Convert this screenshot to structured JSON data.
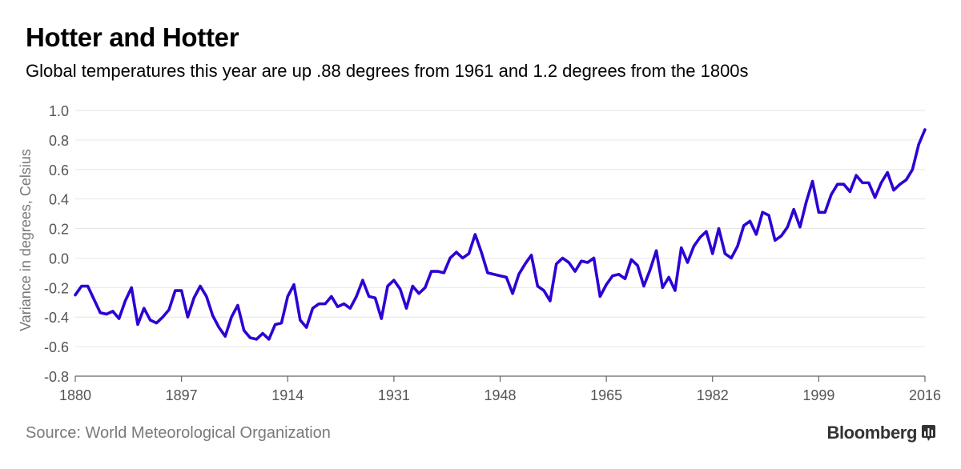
{
  "header": {
    "title": "Hotter and Hotter",
    "subtitle": "Global temperatures this year are up .88 degrees from 1961 and 1.2 degrees from the 1800s"
  },
  "footer": {
    "source": "Source: World Meteorological Organization",
    "brand": "Bloomberg"
  },
  "colors": {
    "line": "#2e00d4",
    "grid": "#e6e6e6",
    "axis": "#666666",
    "tick_text": "#555555"
  },
  "chart_data": {
    "type": "line",
    "title": "Hotter and Hotter",
    "ylabel": "Variance in degrees, Celsius",
    "xlabel": "",
    "xlim": [
      1880,
      2016
    ],
    "ylim": [
      -0.8,
      1.0
    ],
    "grid": true,
    "x_ticks": [
      "1880",
      "1897",
      "1914",
      "1931",
      "1948",
      "1965",
      "1982",
      "1999",
      "2016"
    ],
    "y_ticks": [
      "1.0",
      "0.8",
      "0.6",
      "0.4",
      "0.2",
      "0.0",
      "-0.2",
      "-0.4",
      "-0.6",
      "-0.8"
    ],
    "x": [
      1880,
      1881,
      1882,
      1883,
      1884,
      1885,
      1886,
      1887,
      1888,
      1889,
      1890,
      1891,
      1892,
      1893,
      1894,
      1895,
      1896,
      1897,
      1898,
      1899,
      1900,
      1901,
      1902,
      1903,
      1904,
      1905,
      1906,
      1907,
      1908,
      1909,
      1910,
      1911,
      1912,
      1913,
      1914,
      1915,
      1916,
      1917,
      1918,
      1919,
      1920,
      1921,
      1922,
      1923,
      1924,
      1925,
      1926,
      1927,
      1928,
      1929,
      1930,
      1931,
      1932,
      1933,
      1934,
      1935,
      1936,
      1937,
      1938,
      1939,
      1940,
      1941,
      1942,
      1943,
      1944,
      1945,
      1946,
      1947,
      1948,
      1949,
      1950,
      1951,
      1952,
      1953,
      1954,
      1955,
      1956,
      1957,
      1958,
      1959,
      1960,
      1961,
      1962,
      1963,
      1964,
      1965,
      1966,
      1967,
      1968,
      1969,
      1970,
      1971,
      1972,
      1973,
      1974,
      1975,
      1976,
      1977,
      1978,
      1979,
      1980,
      1981,
      1982,
      1983,
      1984,
      1985,
      1986,
      1987,
      1988,
      1989,
      1990,
      1991,
      1992,
      1993,
      1994,
      1995,
      1996,
      1997,
      1998,
      1999,
      2000,
      2001,
      2002,
      2003,
      2004,
      2005,
      2006,
      2007,
      2008,
      2009,
      2010,
      2011,
      2012,
      2013,
      2014,
      2015,
      2016
    ],
    "series": [
      {
        "values": [
          -0.25,
          -0.19,
          -0.19,
          -0.28,
          -0.37,
          -0.38,
          -0.36,
          -0.41,
          -0.29,
          -0.2,
          -0.45,
          -0.34,
          -0.42,
          -0.44,
          -0.4,
          -0.35,
          -0.22,
          -0.22,
          -0.4,
          -0.27,
          -0.19,
          -0.26,
          -0.39,
          -0.47,
          -0.53,
          -0.4,
          -0.32,
          -0.49,
          -0.54,
          -0.55,
          -0.51,
          -0.55,
          -0.45,
          -0.44,
          -0.26,
          -0.18,
          -0.42,
          -0.47,
          -0.34,
          -0.31,
          -0.31,
          -0.26,
          -0.33,
          -0.31,
          -0.34,
          -0.26,
          -0.15,
          -0.26,
          -0.27,
          -0.41,
          -0.19,
          -0.15,
          -0.21,
          -0.34,
          -0.19,
          -0.24,
          -0.2,
          -0.09,
          -0.09,
          -0.1,
          0.0,
          0.04,
          0.0,
          0.03,
          0.16,
          0.04,
          -0.1,
          -0.11,
          -0.12,
          -0.13,
          -0.24,
          -0.11,
          -0.04,
          0.02,
          -0.19,
          -0.22,
          -0.29,
          -0.04,
          0.0,
          -0.03,
          -0.09,
          -0.02,
          -0.03,
          0.0,
          -0.26,
          -0.18,
          -0.12,
          -0.11,
          -0.14,
          -0.01,
          -0.05,
          -0.19,
          -0.08,
          0.05,
          -0.2,
          -0.13,
          -0.22,
          0.07,
          -0.03,
          0.08,
          0.14,
          0.18,
          0.03,
          0.2,
          0.03,
          0.0,
          0.08,
          0.22,
          0.25,
          0.16,
          0.31,
          0.29,
          0.12,
          0.15,
          0.21,
          0.33,
          0.21,
          0.38,
          0.52,
          0.31,
          0.31,
          0.43,
          0.5,
          0.5,
          0.45,
          0.56,
          0.51,
          0.51,
          0.41,
          0.51,
          0.58,
          0.46,
          0.5,
          0.53,
          0.6,
          0.77,
          0.87
        ]
      }
    ]
  }
}
